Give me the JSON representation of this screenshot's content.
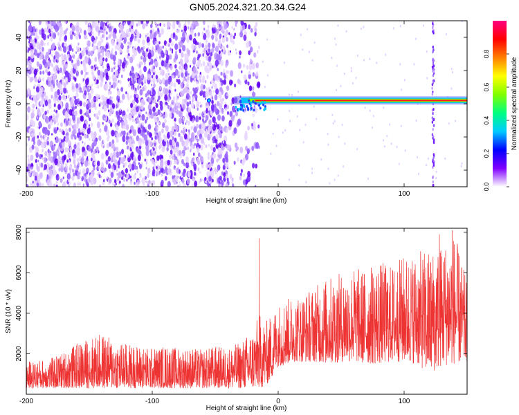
{
  "title": "GN05.2024.321.20.34.G24",
  "chart_data": [
    {
      "type": "heatmap",
      "title": "GN05.2024.321.20.34.G24",
      "xlabel": "Height of straight line (km)",
      "ylabel": "Frequency (Hz)",
      "xlim": [
        -200,
        150
      ],
      "ylim": [
        -50,
        50
      ],
      "xticks": [
        -200,
        -100,
        0,
        100
      ],
      "yticks": [
        -40,
        -20,
        0,
        20,
        40
      ],
      "colorbar": {
        "label": "Normalized spectral amplitude",
        "range": [
          0,
          1
        ],
        "ticks": [
          "0.0",
          "0.2",
          "0.4",
          "0.6",
          "0.8"
        ],
        "colormap": [
          "#ffffff",
          "#8000ff",
          "#0000ff",
          "#00ccff",
          "#00ff80",
          "#80ff00",
          "#ffff00",
          "#ff8000",
          "#ff0000",
          "#ff0080"
        ]
      },
      "features": {
        "noise_region_x": [
          -200,
          -15
        ],
        "tone_frequency_hz": 2,
        "tone_x_range": [
          -35,
          150
        ],
        "tone_onset_x": -35,
        "vertical_streak_x": 123
      }
    },
    {
      "type": "line",
      "xlabel": "Height of straight line (km)",
      "ylabel": "SNR (10 * v/v)",
      "xlim": [
        -200,
        150
      ],
      "ylim": [
        0,
        8200
      ],
      "xticks": [
        -200,
        -100,
        0,
        100
      ],
      "yticks": [
        2000,
        4000,
        6000,
        8000
      ],
      "color": "#ee3333",
      "envelope": {
        "x": [
          -200,
          -190,
          -180,
          -170,
          -160,
          -150,
          -140,
          -130,
          -120,
          -110,
          -100,
          -90,
          -80,
          -70,
          -60,
          -50,
          -40,
          -30,
          -20,
          -15,
          -10,
          -5,
          0,
          5,
          10,
          20,
          30,
          40,
          50,
          60,
          70,
          80,
          90,
          100,
          110,
          120,
          130,
          140,
          150
        ],
        "low": [
          300,
          300,
          300,
          300,
          300,
          300,
          300,
          300,
          300,
          300,
          300,
          300,
          300,
          300,
          300,
          300,
          300,
          300,
          300,
          300,
          400,
          800,
          1400,
          1400,
          1600,
          1600,
          1600,
          1500,
          1600,
          1600,
          1500,
          1500,
          1600,
          1600,
          1500,
          1000,
          1400,
          1500,
          1600
        ],
        "high": [
          1600,
          1700,
          1800,
          2100,
          2500,
          2800,
          3000,
          2700,
          2500,
          2400,
          2300,
          2400,
          2300,
          2300,
          2200,
          2400,
          2300,
          2600,
          3200,
          4000,
          3600,
          4000,
          4500,
          4700,
          4800,
          5000,
          5400,
          5800,
          6000,
          6300,
          6200,
          6600,
          6400,
          6900,
          7000,
          7200,
          7500,
          8000,
          5500
        ]
      },
      "spikes": [
        {
          "x": -15,
          "y": 7700
        },
        {
          "x": 128,
          "y": 7900
        },
        {
          "x": 138,
          "y": 8100
        },
        {
          "x": 130,
          "y": 6800
        }
      ]
    }
  ]
}
